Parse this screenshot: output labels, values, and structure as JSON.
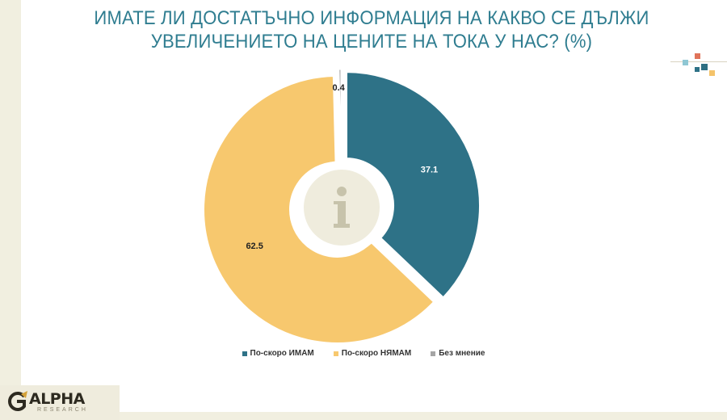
{
  "title": {
    "line1": "ИМАТЕ ЛИ ДОСТАТЪЧНО ИНФОРМАЦИЯ НА КАКВО СЕ ДЪЛЖИ",
    "line2": "УВЕЛИЧЕНИЕТО НА ЦЕНИТЕ НА ТОКА У НАС? (%)"
  },
  "logo": {
    "name": "ALPHA",
    "sub": "RESEARCH"
  },
  "center_icon": "info-icon",
  "chart_data": {
    "type": "pie",
    "variant": "donut",
    "title": "ИМАТЕ ЛИ ДОСТАТЪЧНО ИНФОРМАЦИЯ НА КАКВО СЕ ДЪЛЖИ УВЕЛИЧЕНИЕТО НА ЦЕНИТЕ НА ТОКА У НАС? (%)",
    "legend_position": "bottom",
    "slices": [
      {
        "label": "По-скоро ИМАМ",
        "value": 37.1,
        "value_label": "37.1",
        "color": "#2e7287",
        "label_color": "#ffffff"
      },
      {
        "label": "По-скоро НЯМАМ",
        "value": 62.5,
        "value_label": "62.5",
        "color": "#f7c86e",
        "label_color": "#222222"
      },
      {
        "label": "Без мнение",
        "value": 0.4,
        "value_label": "0.4",
        "color": "#a5a5a5",
        "label_color": "#222222"
      }
    ]
  },
  "colors": {
    "title": "#2f7d90",
    "icon_circle": "#efecdd",
    "icon_glyph": "#c7c3ab"
  }
}
